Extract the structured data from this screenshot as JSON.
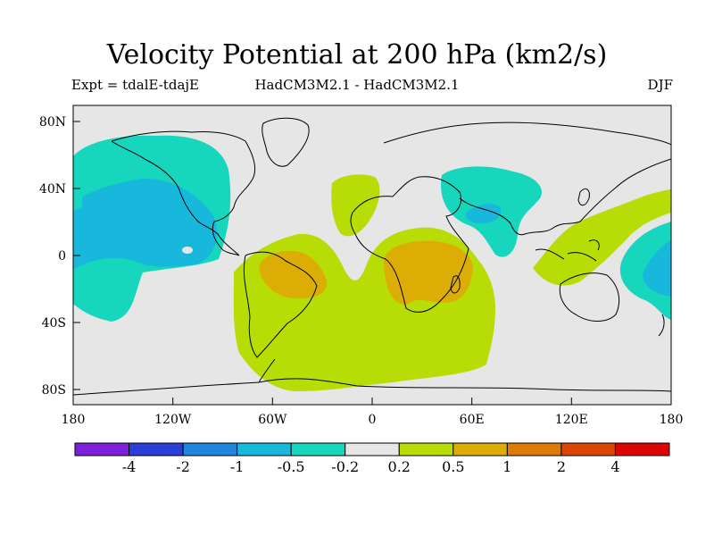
{
  "title": "Velocity Potential at 200 hPa (km2/s)",
  "subtitle_left": "Expt = tdalE-tdajE",
  "subtitle_center": "HadCM3M2.1 - HadCM3M2.1",
  "subtitle_right": "DJF",
  "lat_labels": [
    "80N",
    "40N",
    "0",
    "40S",
    "80S"
  ],
  "lon_labels": [
    "180",
    "120W",
    "60W",
    "0",
    "60E",
    "120E",
    "180"
  ],
  "colorbar": {
    "boundaries": [
      "-4",
      "-2",
      "-1",
      "-0.5",
      "-0.2",
      "0.2",
      "0.5",
      "1",
      "2",
      "4"
    ],
    "colors": [
      "#7f1fdb",
      "#2a3fd8",
      "#1f86db",
      "#17b8db",
      "#16d6be",
      "#e6e6e6",
      "#b8dc05",
      "#dcae05",
      "#dc7c05",
      "#dc4605",
      "#dc0505"
    ]
  },
  "colors": {
    "background": "#e6e6e6",
    "positive_weak": "#b8dc05",
    "positive_mid": "#dcae05",
    "negative_weak": "#16d6be",
    "negative_mid": "#17b8db"
  }
}
